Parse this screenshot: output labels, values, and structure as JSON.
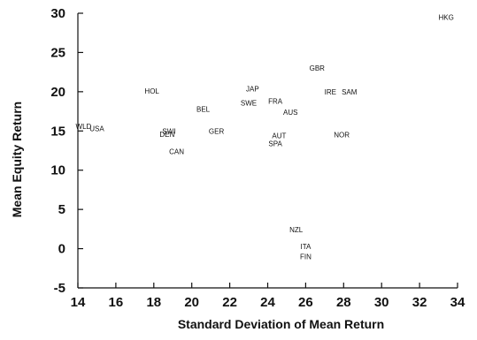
{
  "chart_data": {
    "type": "scatter",
    "title": "",
    "xlabel": "Standard Deviation of Mean Return",
    "ylabel": "Mean Equity Return",
    "xlim": [
      14,
      34
    ],
    "ylim": [
      -5,
      30
    ],
    "xticks": [
      "14",
      "16",
      "18",
      "20",
      "22",
      "24",
      "26",
      "28",
      "30",
      "32",
      "34"
    ],
    "yticks": [
      "-5",
      "0",
      "5",
      "10",
      "15",
      "20",
      "25",
      "30"
    ],
    "grid": false,
    "points": [
      {
        "label": "HKG",
        "x": 33.4,
        "y": 29.5
      },
      {
        "label": "GBR",
        "x": 26.6,
        "y": 23.0
      },
      {
        "label": "JAP",
        "x": 23.2,
        "y": 20.4
      },
      {
        "label": "IRE",
        "x": 27.3,
        "y": 20.0
      },
      {
        "label": "SAM",
        "x": 28.3,
        "y": 20.0
      },
      {
        "label": "HOL",
        "x": 17.9,
        "y": 20.1
      },
      {
        "label": "FRA",
        "x": 24.4,
        "y": 18.8
      },
      {
        "label": "SWE",
        "x": 23.0,
        "y": 18.6
      },
      {
        "label": "BEL",
        "x": 20.6,
        "y": 17.8
      },
      {
        "label": "AUS",
        "x": 25.2,
        "y": 17.4
      },
      {
        "label": "WLD",
        "x": 14.3,
        "y": 15.6
      },
      {
        "label": "USA",
        "x": 15.0,
        "y": 15.3
      },
      {
        "label": "SWI",
        "x": 18.8,
        "y": 15.0
      },
      {
        "label": "GER",
        "x": 21.3,
        "y": 15.0
      },
      {
        "label": "DEN",
        "x": 18.7,
        "y": 14.6
      },
      {
        "label": "AUT",
        "x": 24.6,
        "y": 14.4
      },
      {
        "label": "NOR",
        "x": 27.9,
        "y": 14.5
      },
      {
        "label": "SPA",
        "x": 24.4,
        "y": 13.4
      },
      {
        "label": "CAN",
        "x": 19.2,
        "y": 12.4
      },
      {
        "label": "NZL",
        "x": 25.5,
        "y": 2.4
      },
      {
        "label": "ITA",
        "x": 26.0,
        "y": 0.3
      },
      {
        "label": "FIN",
        "x": 26.0,
        "y": -1.0
      }
    ]
  }
}
